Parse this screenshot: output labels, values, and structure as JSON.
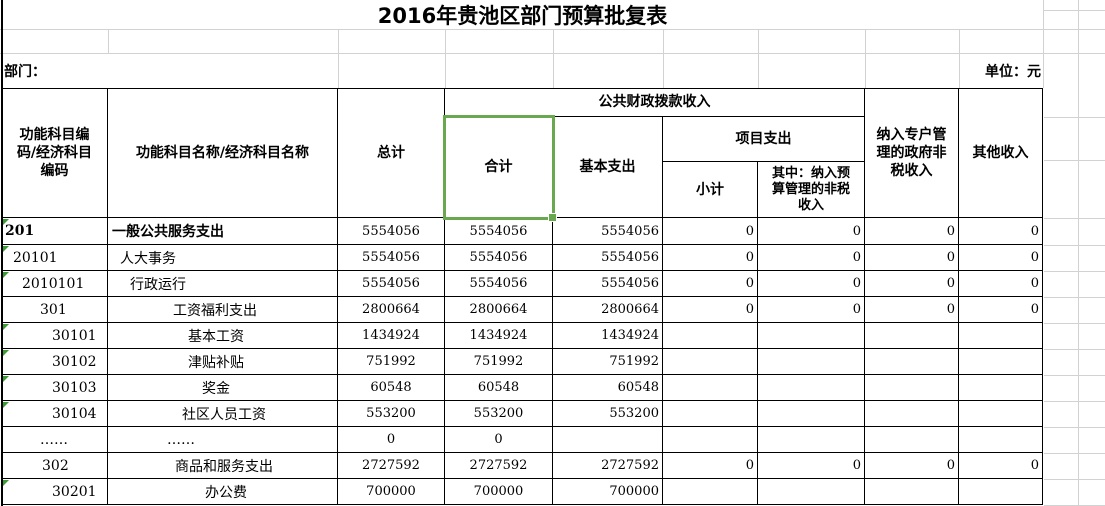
{
  "title": "2016年贵池区部门预算批复表",
  "department_label": "部门：",
  "unit_label": "单位：元",
  "header": {
    "code_col": "功能科目编码/经济科目编码",
    "name_col": "功能科目名称/经济科目名称",
    "grand_total": "总计",
    "public_finance_group": "公共财政拨款收入",
    "allocation_total": "合计",
    "basic_expenditure": "基本支出",
    "project_group": "项目支出",
    "project_subtotal": "小计",
    "project_nontax": "其中：纳入预算管理的非税收入",
    "special_account_nontax": "纳入专户管理的政府非税收入",
    "other_income": "其他收入"
  },
  "rows": [
    {
      "code": "201",
      "name": "一般公共服务支出",
      "total": "5554056",
      "allocation_total": "5554056",
      "basic": "5554056",
      "project_subtotal": "0",
      "project_nontax": "0",
      "special_account": "0",
      "other": "0",
      "bold": true,
      "error_flag": true,
      "code_indent": 3,
      "name_indent": 4
    },
    {
      "code": "20101",
      "name": "人大事务",
      "total": "5554056",
      "allocation_total": "5554056",
      "basic": "5554056",
      "project_subtotal": "0",
      "project_nontax": "0",
      "special_account": "0",
      "other": "0",
      "bold": false,
      "error_flag": true,
      "code_indent": 11,
      "name_indent": 12
    },
    {
      "code": "2010101",
      "name": "行政运行",
      "total": "5554056",
      "allocation_total": "5554056",
      "basic": "5554056",
      "project_subtotal": "0",
      "project_nontax": "0",
      "special_account": "0",
      "other": "0",
      "bold": false,
      "error_flag": true,
      "code_indent": 20,
      "name_indent": 22
    },
    {
      "code": "301",
      "name": "工资福利支出",
      "total": "2800664",
      "allocation_total": "2800664",
      "basic": "2800664",
      "project_subtotal": "0",
      "project_nontax": "0",
      "special_account": "0",
      "other": "0",
      "bold": false,
      "error_flag": false,
      "code_indent": 38,
      "name_indent": 65
    },
    {
      "code": "30101",
      "name": "基本工资",
      "total": "1434924",
      "allocation_total": "1434924",
      "basic": "1434924",
      "project_subtotal": "",
      "project_nontax": "",
      "special_account": "",
      "other": "",
      "bold": false,
      "error_flag": true,
      "code_indent": 50,
      "name_indent": 80
    },
    {
      "code": "30102",
      "name": "津贴补贴",
      "total": "751992",
      "allocation_total": "751992",
      "basic": "751992",
      "project_subtotal": "",
      "project_nontax": "",
      "special_account": "",
      "other": "",
      "bold": false,
      "error_flag": true,
      "code_indent": 50,
      "name_indent": 80
    },
    {
      "code": "30103",
      "name": "奖金",
      "total": "60548",
      "allocation_total": "60548",
      "basic": "60548",
      "project_subtotal": "",
      "project_nontax": "",
      "special_account": "",
      "other": "",
      "bold": false,
      "error_flag": true,
      "code_indent": 50,
      "name_indent": 94
    },
    {
      "code": "30104",
      "name": "社区人员工资",
      "total": "553200",
      "allocation_total": "553200",
      "basic": "553200",
      "project_subtotal": "",
      "project_nontax": "",
      "special_account": "",
      "other": "",
      "bold": false,
      "error_flag": true,
      "code_indent": 50,
      "name_indent": 74
    },
    {
      "code": "……",
      "name": "……",
      "total": "0",
      "allocation_total": "0",
      "basic": "",
      "project_subtotal": "",
      "project_nontax": "",
      "special_account": "",
      "other": "",
      "bold": false,
      "error_flag": false,
      "code_indent": 38,
      "name_indent": 59
    },
    {
      "code": "302",
      "name": "商品和服务支出",
      "total": "2727592",
      "allocation_total": "2727592",
      "basic": "2727592",
      "project_subtotal": "0",
      "project_nontax": "0",
      "special_account": "0",
      "other": "0",
      "bold": false,
      "error_flag": false,
      "code_indent": 40,
      "name_indent": 67
    },
    {
      "code": "30201",
      "name": "办公费",
      "total": "700000",
      "allocation_total": "700000",
      "basic": "700000",
      "project_subtotal": "",
      "project_nontax": "",
      "special_account": "",
      "other": "",
      "bold": false,
      "error_flag": true,
      "code_indent": 50,
      "name_indent": 97
    }
  ],
  "colors": {
    "selection_green": "#6aa84f",
    "flag_green": "#3d9b35",
    "grid_gray": "#d2d2d2",
    "border_black": "#000000"
  }
}
